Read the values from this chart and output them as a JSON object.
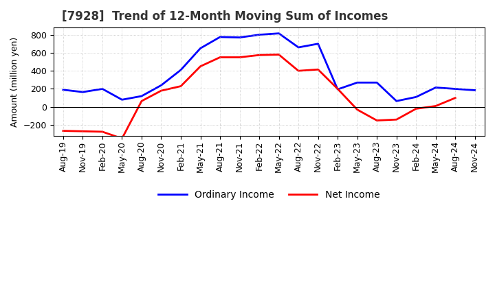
{
  "title": "[7928]  Trend of 12-Month Moving Sum of Incomes",
  "ylabel": "Amount (million yen)",
  "x_labels": [
    "Aug-19",
    "Nov-19",
    "Feb-20",
    "May-20",
    "Aug-20",
    "Nov-20",
    "Feb-21",
    "May-21",
    "Aug-21",
    "Nov-21",
    "Feb-22",
    "May-22",
    "Aug-22",
    "Nov-22",
    "Feb-23",
    "May-23",
    "Aug-23",
    "Nov-23",
    "Feb-24",
    "May-24",
    "Aug-24",
    "Nov-24"
  ],
  "ordinary_income": [
    190,
    165,
    200,
    80,
    120,
    240,
    410,
    650,
    775,
    770,
    800,
    815,
    660,
    700,
    195,
    270,
    270,
    65,
    110,
    215,
    200,
    185
  ],
  "net_income": [
    -265,
    -270,
    -275,
    -350,
    65,
    180,
    230,
    450,
    550,
    550,
    575,
    580,
    400,
    415,
    200,
    -30,
    -150,
    -140,
    -20,
    10,
    100,
    null
  ],
  "ordinary_color": "#0000ff",
  "net_color": "#ff0000",
  "background_color": "#ffffff",
  "grid_color": "#aaaaaa",
  "ylim": [
    -320,
    880
  ],
  "yticks": [
    -200,
    0,
    200,
    400,
    600,
    800
  ],
  "title_fontsize": 12,
  "title_color": "#333333",
  "legend_fontsize": 10,
  "axis_fontsize": 9
}
